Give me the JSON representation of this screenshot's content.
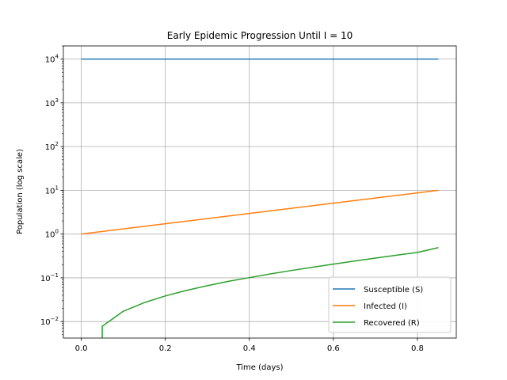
{
  "chart_data": {
    "type": "line",
    "title": "Early Epidemic Progression Until I = 10",
    "xlabel": "Time (days)",
    "ylabel": "Population (log scale)",
    "xlim": [
      -0.0425,
      0.8925
    ],
    "ylim": [
      0.0042,
      20000
    ],
    "yscale": "log",
    "grid": true,
    "legend_position": "lower-right",
    "x_ticks": [
      {
        "value": 0.0,
        "label": "0.0"
      },
      {
        "value": 0.2,
        "label": "0.2"
      },
      {
        "value": 0.4,
        "label": "0.4"
      },
      {
        "value": 0.6,
        "label": "0.6"
      },
      {
        "value": 0.8,
        "label": "0.8"
      }
    ],
    "y_ticks": [
      {
        "value": 0.01,
        "mant": "10",
        "exp": "−2"
      },
      {
        "value": 0.1,
        "mant": "10",
        "exp": "−1"
      },
      {
        "value": 1,
        "mant": "10",
        "exp": "0"
      },
      {
        "value": 10,
        "mant": "10",
        "exp": "1"
      },
      {
        "value": 100,
        "mant": "10",
        "exp": "2"
      },
      {
        "value": 1000,
        "mant": "10",
        "exp": "3"
      },
      {
        "value": 10000,
        "mant": "10",
        "exp": "4"
      }
    ],
    "series": [
      {
        "name": "Susceptible (S)",
        "color": "#1f77b4",
        "x": [
          0,
          0.85
        ],
        "y": [
          9999,
          9990
        ]
      },
      {
        "name": "Infected (I)",
        "color": "#ff7f0e",
        "x": [
          0,
          0.05,
          0.1,
          0.15,
          0.2,
          0.25,
          0.3,
          0.35,
          0.4,
          0.45,
          0.5,
          0.55,
          0.6,
          0.65,
          0.7,
          0.75,
          0.8,
          0.85
        ],
        "y": [
          1.0,
          1.145,
          1.311,
          1.501,
          1.719,
          1.968,
          2.254,
          2.58,
          2.955,
          3.383,
          3.874,
          4.436,
          5.079,
          5.816,
          6.659,
          7.625,
          8.731,
          10.0
        ]
      },
      {
        "name": "Recovered (R)",
        "color": "#2ca02c",
        "x": [
          0.05,
          0.05,
          0.1,
          0.15,
          0.2,
          0.25,
          0.3,
          0.35,
          0.4,
          0.45,
          0.5,
          0.55,
          0.6,
          0.65,
          0.7,
          0.75,
          0.8,
          0.85
        ],
        "y": [
          0.0042,
          0.0078,
          0.0172,
          0.0271,
          0.0385,
          0.0515,
          0.066,
          0.083,
          0.101,
          0.123,
          0.147,
          0.174,
          0.206,
          0.242,
          0.282,
          0.329,
          0.38,
          0.49
        ]
      }
    ]
  }
}
